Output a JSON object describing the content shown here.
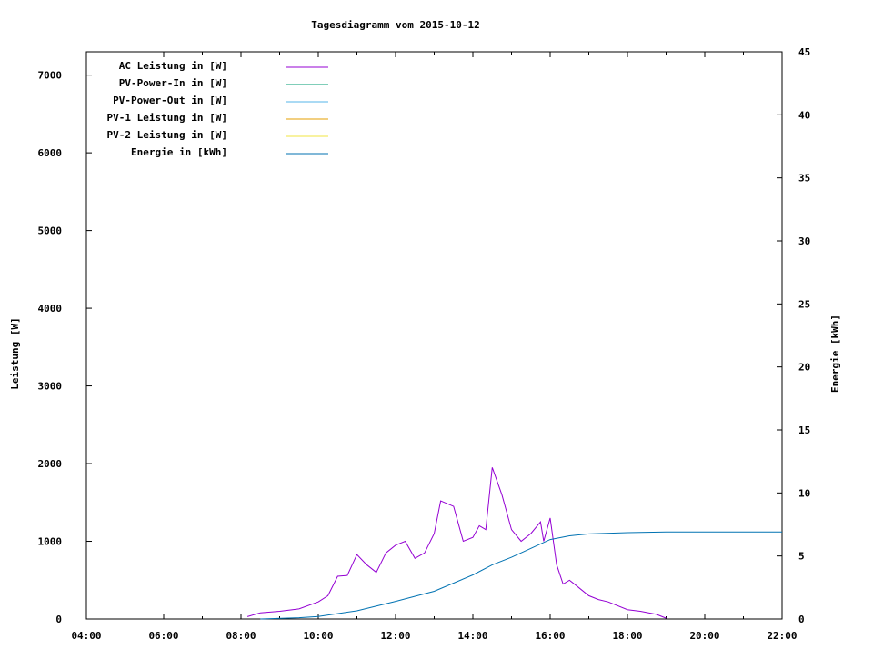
{
  "chart_data": {
    "type": "line",
    "title": "Tagesdiagramm vom 2015-10-12",
    "ylabel": "Leistung [W]",
    "y2label": "Energie [kWh]",
    "xlim": [
      "04:00",
      "22:00"
    ],
    "ylim": [
      0,
      7300
    ],
    "y2lim": [
      0,
      45
    ],
    "xticks": [
      "04:00",
      "06:00",
      "08:00",
      "10:00",
      "12:00",
      "14:00",
      "16:00",
      "18:00",
      "20:00",
      "22:00"
    ],
    "yticks": [
      0,
      1000,
      2000,
      3000,
      4000,
      5000,
      6000,
      7000
    ],
    "y2ticks": [
      0,
      5,
      10,
      15,
      20,
      25,
      30,
      35,
      40,
      45
    ],
    "grid": false,
    "legend_placement": "top-left",
    "series": [
      {
        "name": "AC Leistung in [W]",
        "color": "#9400d3",
        "axis": "y",
        "x": [
          "08:10",
          "08:30",
          "09:00",
          "09:30",
          "10:00",
          "10:15",
          "10:30",
          "10:45",
          "11:00",
          "11:15",
          "11:30",
          "11:45",
          "12:00",
          "12:15",
          "12:30",
          "12:45",
          "13:00",
          "13:10",
          "13:30",
          "13:45",
          "14:00",
          "14:10",
          "14:20",
          "14:30",
          "14:45",
          "15:00",
          "15:15",
          "15:30",
          "15:45",
          "15:50",
          "16:00",
          "16:10",
          "16:20",
          "16:30",
          "16:45",
          "17:00",
          "17:15",
          "17:30",
          "18:00",
          "18:20",
          "18:45",
          "19:00"
        ],
        "values": [
          30,
          80,
          100,
          130,
          220,
          300,
          550,
          560,
          830,
          700,
          600,
          850,
          950,
          1000,
          780,
          850,
          1100,
          1520,
          1450,
          1000,
          1050,
          1200,
          1150,
          1950,
          1600,
          1150,
          1000,
          1100,
          1250,
          1000,
          1300,
          700,
          450,
          500,
          400,
          300,
          250,
          220,
          120,
          100,
          60,
          10
        ]
      },
      {
        "name": "PV-Power-In in [W]",
        "color": "#009e73",
        "axis": "y",
        "x": [],
        "values": []
      },
      {
        "name": "PV-Power-Out in [W]",
        "color": "#56b4e9",
        "axis": "y",
        "x": [],
        "values": []
      },
      {
        "name": "PV-1 Leistung in [W]",
        "color": "#e69f00",
        "axis": "y",
        "x": [],
        "values": []
      },
      {
        "name": "PV-2 Leistung in [W]",
        "color": "#f0e442",
        "axis": "y",
        "x": [],
        "values": []
      },
      {
        "name": "Energie in [kWh]",
        "color": "#0072b2",
        "axis": "y2",
        "x": [
          "08:30",
          "09:30",
          "10:00",
          "11:00",
          "12:00",
          "13:00",
          "14:00",
          "14:30",
          "15:00",
          "15:30",
          "16:00",
          "16:30",
          "17:00",
          "18:00",
          "19:00",
          "22:00"
        ],
        "values": [
          0,
          0.1,
          0.2,
          0.65,
          1.4,
          2.2,
          3.5,
          4.3,
          4.9,
          5.6,
          6.3,
          6.6,
          6.75,
          6.85,
          6.9,
          6.9
        ]
      }
    ]
  }
}
